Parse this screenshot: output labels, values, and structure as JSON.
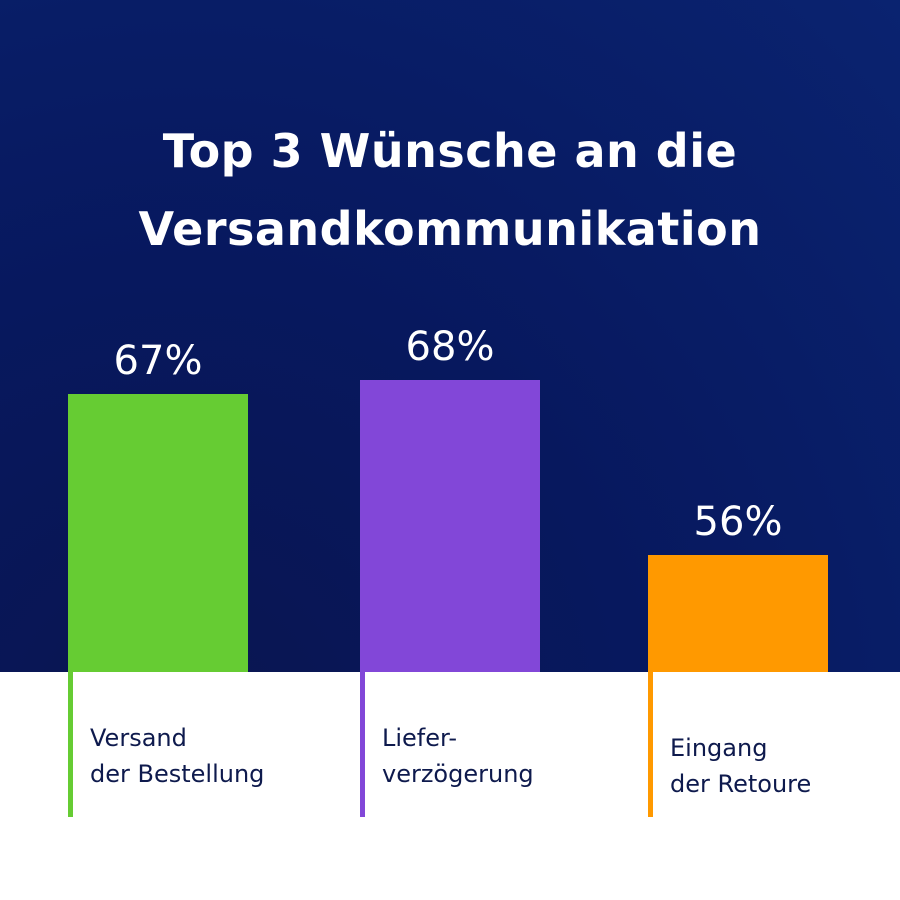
{
  "chart_data": {
    "type": "bar",
    "title": "Top 3 Wünsche an die Versandkommunikation",
    "categories": [
      [
        "Versand",
        "der Bestellung"
      ],
      [
        "Liefer-",
        "verzögerung"
      ],
      [
        "Eingang",
        "der Retoure"
      ]
    ],
    "values": [
      67,
      68,
      56
    ],
    "value_labels": [
      "67%",
      "68%",
      "56%"
    ],
    "colors": [
      "#66cc33",
      "#8247d8",
      "#ff9900"
    ],
    "background": "#07185e",
    "grid": false
  }
}
